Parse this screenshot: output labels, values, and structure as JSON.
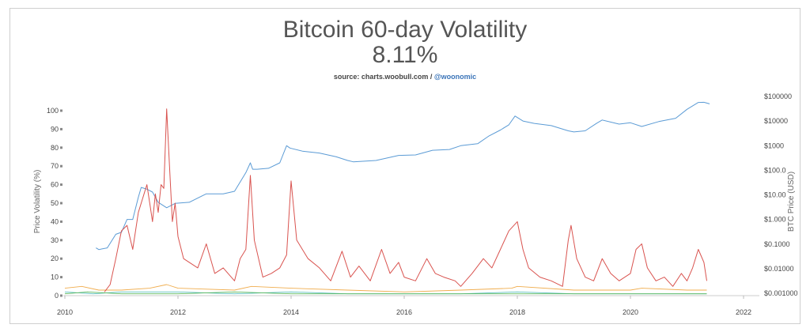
{
  "header": {
    "title": "Bitcoin 60-day Volatility",
    "current_value": "8.11%",
    "source_prefix": "source: charts.woobull.com / ",
    "source_handle": "@woonomic"
  },
  "chart_data": {
    "type": "line",
    "ylabel": "Price Volatility (%)",
    "y2label": "BTC Price (USD)",
    "x_ticks": [
      "2010",
      "2012",
      "2014",
      "2016",
      "2018",
      "2020",
      "2022"
    ],
    "y_ticks": [
      "0",
      "10",
      "20",
      "30",
      "40",
      "50",
      "60",
      "70",
      "80",
      "90",
      "100"
    ],
    "y2_ticks": [
      "$0.001000",
      "$0.01000",
      "$0.1000",
      "$1.000",
      "$10.00",
      "$100.0",
      "$1000",
      "$10000",
      "$100000"
    ],
    "xlim": [
      2010,
      2022
    ],
    "ylim": [
      0,
      100
    ],
    "y2lim_log": [
      0.001,
      100000
    ],
    "grid": false,
    "colors": {
      "price": "#5b9bd5",
      "volatility": "#d9534f",
      "secondary_orange": "#f0ad4e",
      "secondary_teal": "#5bc0be",
      "secondary_green": "#5cb85c"
    },
    "series": [
      {
        "color": "#5b9bd5",
        "axis": "right",
        "x": [
          2010.55,
          2010.6,
          2010.75,
          2010.9,
          2011.0,
          2011.1,
          2011.2,
          2011.3,
          2011.35,
          2011.42,
          2011.45,
          2011.55,
          2011.65,
          2011.8,
          2011.95,
          2012.2,
          2012.5,
          2012.8,
          2013.0,
          2013.2,
          2013.28,
          2013.32,
          2013.4,
          2013.6,
          2013.8,
          2013.92,
          2013.98,
          2014.2,
          2014.5,
          2014.8,
          2015.0,
          2015.1,
          2015.5,
          2015.9,
          2016.2,
          2016.5,
          2016.8,
          2017.0,
          2017.3,
          2017.5,
          2017.7,
          2017.85,
          2017.96,
          2018.1,
          2018.3,
          2018.6,
          2018.9,
          2019.0,
          2019.2,
          2019.4,
          2019.5,
          2019.8,
          2020.0,
          2020.2,
          2020.5,
          2020.8,
          2021.0,
          2021.2,
          2021.3,
          2021.4
        ],
        "values": [
          0.07,
          0.06,
          0.07,
          0.25,
          0.3,
          1.0,
          1.0,
          8.0,
          20.0,
          18.0,
          17.0,
          13.0,
          5.0,
          3.0,
          4.5,
          5.0,
          11.0,
          11.0,
          14.0,
          80.0,
          200.0,
          110.0,
          110.0,
          120.0,
          200.0,
          1000.0,
          800.0,
          600.0,
          500.0,
          350.0,
          250.0,
          220.0,
          250.0,
          400.0,
          420.0,
          650.0,
          700.0,
          1000.0,
          1200.0,
          2500.0,
          4300.0,
          7000.0,
          16000.0,
          10000.0,
          8000.0,
          6500.0,
          4000.0,
          3600.0,
          4000.0,
          8000.0,
          11000.0,
          7500.0,
          8500.0,
          6000.0,
          9500.0,
          13000.0,
          30000.0,
          57000.0,
          58000.0,
          50000.0
        ]
      },
      {
        "color": "#d9534f",
        "axis": "left",
        "x": [
          2010.7,
          2010.8,
          2010.9,
          2011.0,
          2011.1,
          2011.2,
          2011.3,
          2011.4,
          2011.45,
          2011.5,
          2011.55,
          2011.6,
          2011.65,
          2011.7,
          2011.75,
          2011.8,
          2011.85,
          2011.9,
          2011.95,
          2012.0,
          2012.1,
          2012.2,
          2012.35,
          2012.5,
          2012.65,
          2012.8,
          2013.0,
          2013.1,
          2013.2,
          2013.28,
          2013.35,
          2013.5,
          2013.65,
          2013.8,
          2013.92,
          2014.0,
          2014.1,
          2014.3,
          2014.5,
          2014.7,
          2014.9,
          2015.05,
          2015.2,
          2015.4,
          2015.6,
          2015.75,
          2015.9,
          2016.0,
          2016.2,
          2016.4,
          2016.55,
          2016.7,
          2016.9,
          2017.0,
          2017.2,
          2017.4,
          2017.55,
          2017.7,
          2017.85,
          2018.0,
          2018.1,
          2018.2,
          2018.4,
          2018.6,
          2018.8,
          2018.9,
          2018.95,
          2019.05,
          2019.2,
          2019.35,
          2019.5,
          2019.65,
          2019.8,
          2019.9,
          2020.0,
          2020.1,
          2020.2,
          2020.3,
          2020.45,
          2020.6,
          2020.75,
          2020.9,
          2021.0,
          2021.1,
          2021.2,
          2021.3,
          2021.35
        ],
        "values": [
          2,
          6,
          20,
          35,
          38,
          25,
          45,
          55,
          60,
          50,
          40,
          55,
          45,
          60,
          58,
          101,
          70,
          40,
          50,
          32,
          20,
          18,
          15,
          28,
          12,
          15,
          8,
          20,
          25,
          65,
          30,
          10,
          12,
          15,
          22,
          62,
          30,
          20,
          15,
          8,
          24,
          10,
          16,
          8,
          25,
          12,
          18,
          10,
          8,
          20,
          12,
          10,
          8,
          5,
          12,
          20,
          15,
          25,
          35,
          40,
          25,
          15,
          10,
          8,
          5,
          30,
          38,
          20,
          10,
          8,
          20,
          12,
          8,
          10,
          12,
          25,
          28,
          15,
          8,
          10,
          5,
          12,
          8,
          15,
          25,
          18,
          8
        ]
      },
      {
        "color": "#f0ad4e",
        "axis": "left",
        "x": [
          2010.0,
          2010.3,
          2010.6,
          2011.0,
          2011.5,
          2011.8,
          2012.0,
          2013.0,
          2013.3,
          2014.0,
          2015.0,
          2016.0,
          2017.0,
          2017.9,
          2018.0,
          2019.0,
          2020.0,
          2020.2,
          2021.0,
          2021.35
        ],
        "values": [
          4,
          5,
          3,
          3,
          4,
          6,
          4,
          3,
          5,
          4,
          3,
          2,
          3,
          4,
          5,
          3,
          3,
          4,
          3,
          3
        ]
      },
      {
        "color": "#5bc0be",
        "axis": "left",
        "x": [
          2010.0,
          2010.5,
          2011.0,
          2012.0,
          2013.0,
          2014.0,
          2015.0,
          2016.0,
          2017.0,
          2018.0,
          2019.0,
          2020.0,
          2021.0,
          2021.35
        ],
        "values": [
          2,
          1,
          2,
          2,
          1,
          2,
          1,
          1,
          1,
          2,
          1,
          1,
          1,
          1
        ]
      },
      {
        "color": "#5cb85c",
        "axis": "left",
        "x": [
          2010.0,
          2010.4,
          2011.0,
          2012.0,
          2013.0,
          2014.0,
          2015.0,
          2016.0,
          2017.0,
          2018.0,
          2019.0,
          2020.0,
          2021.0,
          2021.35
        ],
        "values": [
          1,
          2,
          1,
          1,
          2,
          1,
          1,
          1,
          1,
          1,
          1,
          1,
          1,
          1
        ]
      }
    ]
  }
}
